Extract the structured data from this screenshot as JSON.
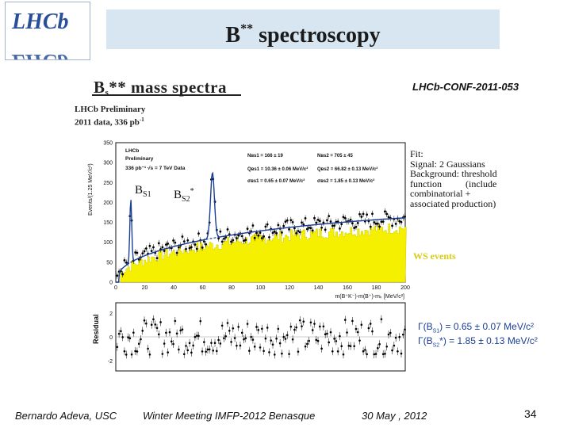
{
  "slide": {
    "title_base": "B",
    "title_sup": "**",
    "title_rest": " spectroscopy",
    "logo_text": "LHCb"
  },
  "plot": {
    "title_main": "B",
    "title_sub": "s",
    "title_rest": "** mass spectra",
    "conf_id": "LHCb-CONF-2011-053",
    "prelim_line1": "LHCb Preliminary",
    "prelim_line2": "2011 data, 336 pb",
    "prelim_line2_sup": "-1",
    "inner_legend": [
      "LHCb",
      "Preliminary",
      "336 pb⁻¹ √s = 7 TeV Data"
    ],
    "params_left": [
      "Nʙs1 = 166 ± 19",
      "Qʙs1 = 10.36 ± 0.06 MeV/c²",
      "σʙs1 = 0.65 ± 0.07 MeV/c²"
    ],
    "params_right": [
      "Nʙs2 = 705 ± 45",
      "Qʙs2 = 66.82 ± 0.13 MeV/c²",
      "σʙs2 = 1.85 ± 0.13 MeV/c²"
    ],
    "ylabel_top": "Events/(1.25 MeV/c²)",
    "ylabel_bottom": "Residual",
    "xlabel": "m(B⁺K⁻)-m(B⁺)-mₖ [MeV/c²]",
    "yticks_top": [
      "350",
      "300",
      "250",
      "200",
      "150",
      "100",
      "50",
      "0"
    ],
    "xticks": [
      "0",
      "20",
      "40",
      "60",
      "80",
      "100",
      "120",
      "140",
      "160",
      "180",
      "200"
    ],
    "yticks_bottom": [
      "2",
      "0",
      "-2"
    ],
    "peak1_label": "B",
    "peak1_sub": "S1",
    "peak2_label": "B",
    "peak2_sub": "S2",
    "peak2_sup": "*",
    "fit_text": "Fit:\nSignal: 2 Gaussians\nBackground: threshold\nfunction          (include\ncombinatorial +\nassociated production)",
    "ws_label": "WS events",
    "width1_prefix": "Γ(B",
    "width1_sub": "S1",
    "width1_rest": ") =  0.65 ± 0.07 MeV/c²",
    "width2_prefix": "Γ(B",
    "width2_sub": "S2",
    "width2_rest": "*) = 1.85 ± 0.13 MeV/c²"
  },
  "footer": {
    "author": "Bernardo Adeva, USC",
    "event": "Winter Meeting IMFP-2012  Benasque",
    "date": "30 May , 2012",
    "page": "34"
  },
  "colors": {
    "title_bar": "#d7e6f0",
    "ws_fill": "#f4f000",
    "fit_line": "#1a3e96",
    "width_text": "#1a3e96"
  }
}
